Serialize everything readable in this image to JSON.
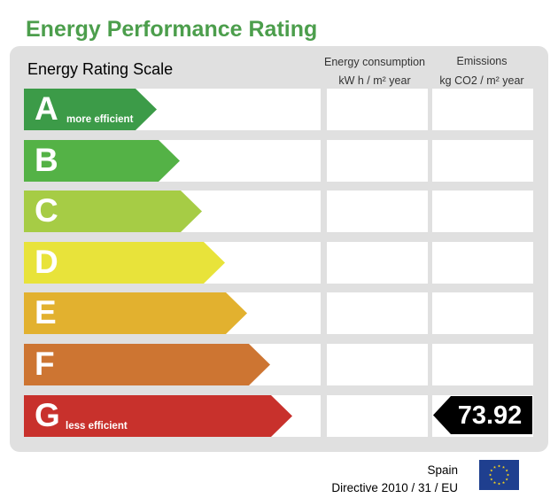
{
  "title": "Energy Performance Rating",
  "scale_label": "Energy Rating Scale",
  "columns": {
    "consumption": {
      "line1": "Energy consumption",
      "line2": "kW h / m² year"
    },
    "emissions": {
      "line1": "Emissions",
      "line2": "kg CO2 / m² year"
    }
  },
  "bands": [
    {
      "letter": "A",
      "note": "more efficient",
      "color": "#3c9b48"
    },
    {
      "letter": "B",
      "note": "",
      "color": "#54b246"
    },
    {
      "letter": "C",
      "note": "",
      "color": "#a6cc45"
    },
    {
      "letter": "D",
      "note": "",
      "color": "#e8e33a"
    },
    {
      "letter": "E",
      "note": "",
      "color": "#e2b12f"
    },
    {
      "letter": "F",
      "note": "",
      "color": "#cd7532"
    },
    {
      "letter": "G",
      "note": "less efficient",
      "color": "#c8312c"
    }
  ],
  "rating": {
    "band": "G",
    "column": "emissions",
    "value": "73.92"
  },
  "footer": {
    "country": "Spain",
    "directive": "Directive 2010 / 31 / EU"
  },
  "icons": {
    "flag": "eu-flag-icon"
  }
}
